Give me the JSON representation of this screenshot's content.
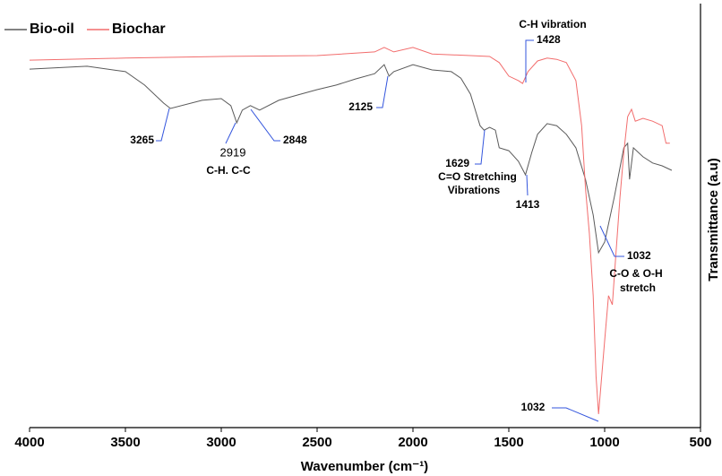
{
  "chart_data": {
    "type": "line",
    "x_label": "Wavenumber (cm⁻¹)",
    "y_label": "Transmittance (a.u)",
    "xlim": [
      4000,
      500
    ],
    "xticks": [
      4000,
      3500,
      3000,
      2500,
      2000,
      1500,
      1000,
      500
    ],
    "ylim": [
      0,
      100
    ],
    "legend": "top-left",
    "series": [
      {
        "name": "Bio-oil",
        "color": "#5a5a5a",
        "x": [
          4000,
          3700,
          3500,
          3400,
          3300,
          3265,
          3100,
          3000,
          2950,
          2919,
          2890,
          2848,
          2800,
          2700,
          2600,
          2500,
          2400,
          2300,
          2200,
          2150,
          2125,
          2100,
          2000,
          1900,
          1800,
          1750,
          1700,
          1650,
          1629,
          1600,
          1570,
          1550,
          1500,
          1450,
          1413,
          1380,
          1350,
          1300,
          1250,
          1200,
          1150,
          1100,
          1060,
          1032,
          1000,
          950,
          900,
          880,
          870,
          850,
          800,
          750,
          700,
          650
        ],
        "values": [
          87.5,
          88.2,
          86.9,
          83.6,
          79.2,
          77.9,
          79.9,
          80.3,
          78.6,
          74.4,
          77.5,
          78.6,
          77.5,
          79.9,
          81.2,
          82.5,
          83.6,
          85.1,
          86.4,
          88.6,
          85.8,
          86.9,
          88.6,
          87.3,
          86.9,
          85.3,
          81.4,
          73.7,
          72.6,
          73.3,
          72.6,
          68.3,
          67.6,
          65.0,
          61.7,
          67.2,
          71.6,
          74.2,
          73.7,
          71.6,
          68.3,
          60.6,
          51.9,
          42.7,
          45.3,
          56.2,
          68.3,
          69.4,
          60.6,
          68.3,
          66.1,
          64.6,
          63.9,
          62.8
        ]
      },
      {
        "name": "Biochar",
        "color": "#f26d6d",
        "x": [
          4000,
          3500,
          3000,
          2500,
          2200,
          2150,
          2100,
          2000,
          1900,
          1700,
          1600,
          1550,
          1500,
          1450,
          1428,
          1400,
          1350,
          1300,
          1250,
          1200,
          1150,
          1120,
          1100,
          1080,
          1060,
          1045,
          1032,
          1000,
          980,
          960,
          940,
          920,
          900,
          880,
          860,
          840,
          800,
          750,
          700,
          680,
          660
        ],
        "values": [
          89.7,
          90.2,
          90.6,
          90.8,
          91.7,
          92.8,
          91.7,
          92.8,
          91.2,
          90.8,
          90.6,
          89.1,
          85.8,
          84.7,
          84.0,
          86.9,
          89.5,
          90.2,
          89.9,
          89.1,
          84.7,
          73.7,
          58.4,
          47.5,
          32.2,
          12.5,
          3.3,
          21.2,
          32.2,
          30.0,
          43.1,
          56.2,
          67.2,
          75.9,
          77.7,
          74.8,
          75.5,
          74.8,
          73.7,
          69.4,
          69.4
        ]
      }
    ],
    "annotations": [
      "3265",
      "2919",
      "C-H. C-C",
      "2848",
      "2125",
      "1629",
      "C=O Stretching",
      "Vibrations",
      "1413",
      "C-H vibration",
      "1428",
      "1032",
      "C-O & O-H",
      "stretch",
      "1032"
    ]
  }
}
